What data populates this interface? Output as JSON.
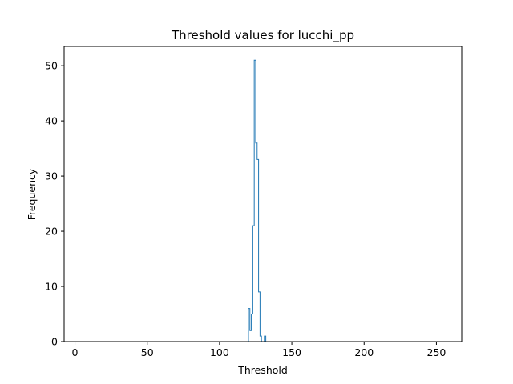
{
  "chart_data": {
    "type": "histogram-step",
    "title": "Threshold values for lucchi_pp",
    "xlabel": "Threshold",
    "ylabel": "Frequency",
    "xlim": [
      -7.5,
      267.5
    ],
    "ylim": [
      0,
      53.5
    ],
    "xticks": [
      0,
      50,
      100,
      150,
      200,
      250
    ],
    "yticks": [
      0,
      10,
      20,
      30,
      40,
      50
    ],
    "bin_width": 1,
    "grid": false,
    "series": [
      {
        "color": "#1f77b4",
        "bins": [
          {
            "x": 119,
            "count": 0
          },
          {
            "x": 120,
            "count": 6
          },
          {
            "x": 121,
            "count": 2
          },
          {
            "x": 122,
            "count": 5
          },
          {
            "x": 123,
            "count": 21
          },
          {
            "x": 124,
            "count": 51
          },
          {
            "x": 125,
            "count": 36
          },
          {
            "x": 126,
            "count": 33
          },
          {
            "x": 127,
            "count": 9
          },
          {
            "x": 128,
            "count": 1
          },
          {
            "x": 129,
            "count": 0
          },
          {
            "x": 130,
            "count": 0
          },
          {
            "x": 131,
            "count": 1
          },
          {
            "x": 132,
            "count": 0
          }
        ],
        "range": [
          0,
          255
        ]
      }
    ]
  }
}
